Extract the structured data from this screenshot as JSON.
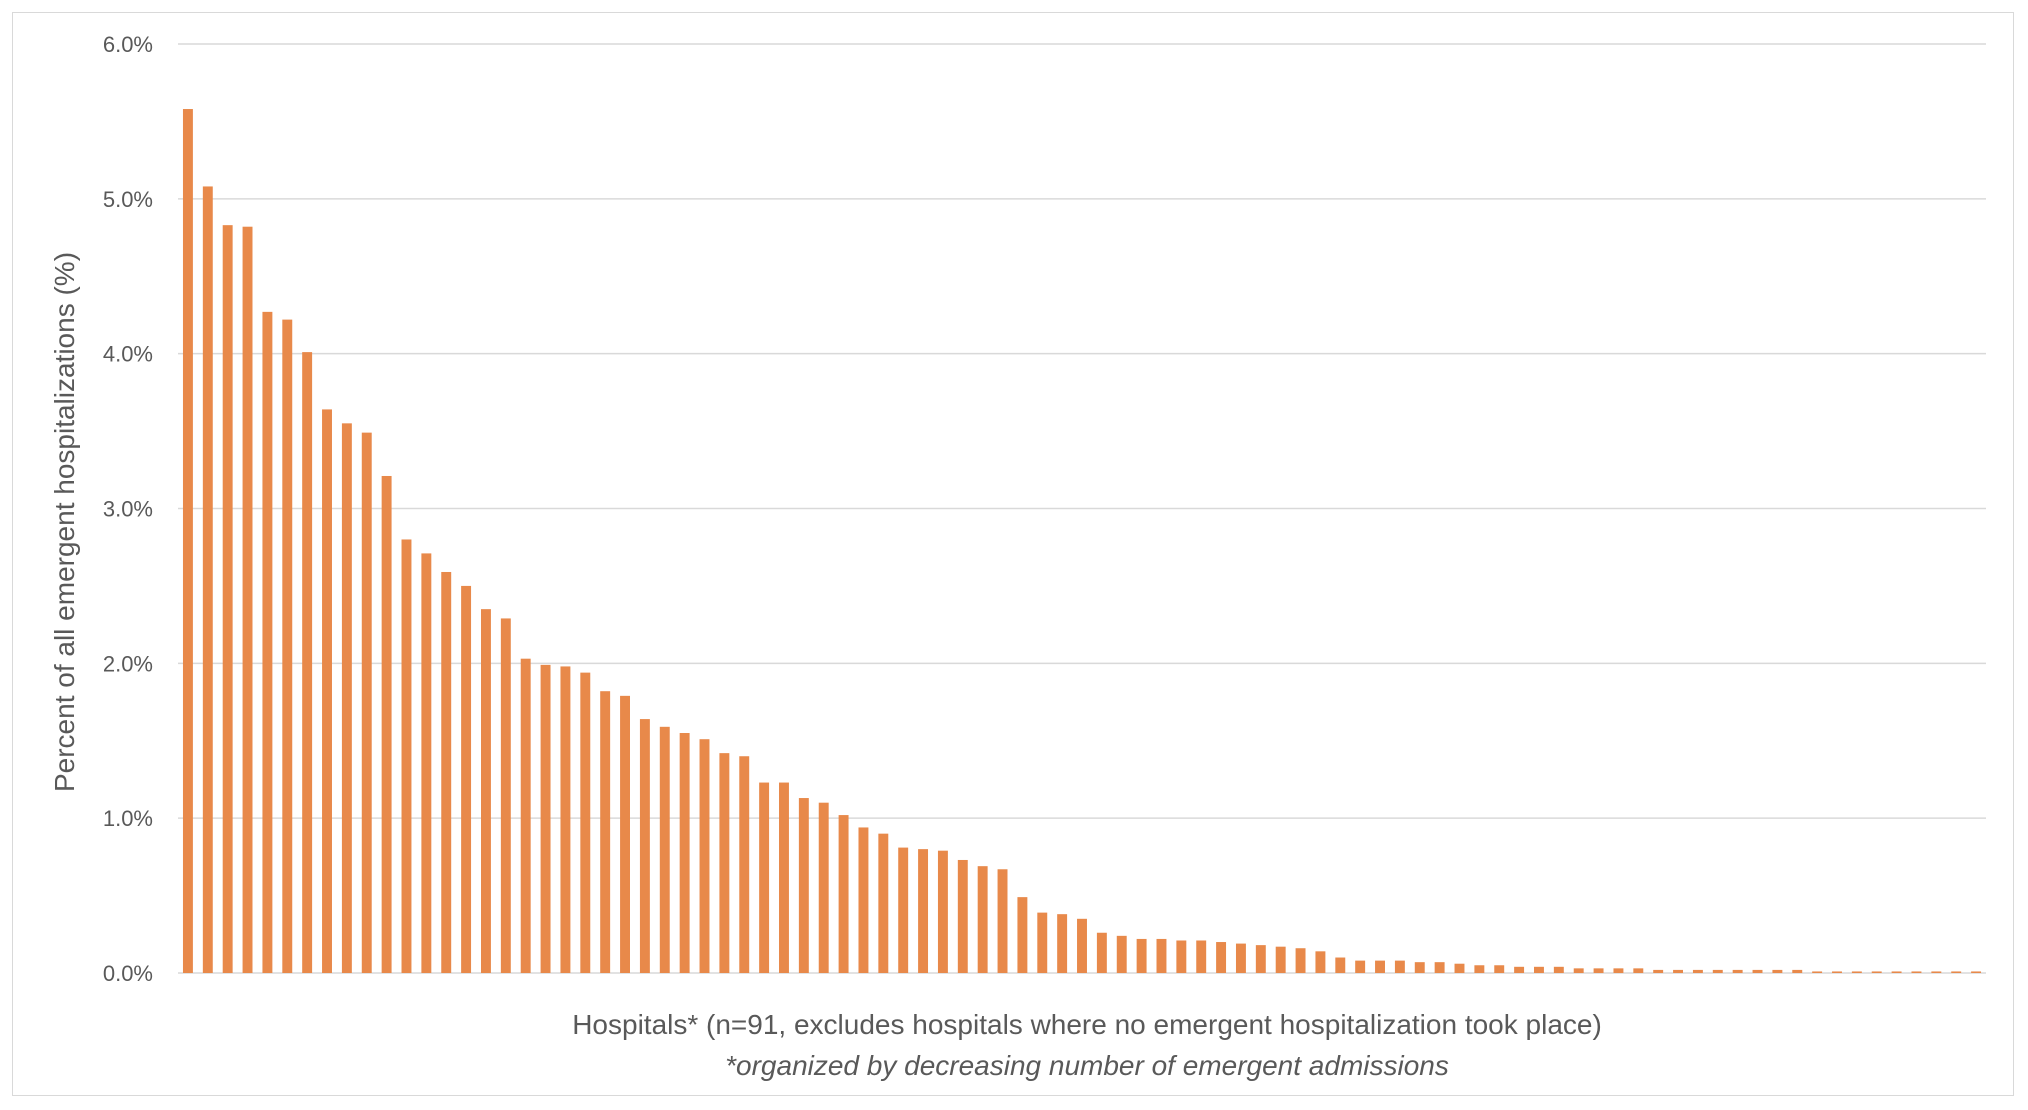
{
  "chart_data": {
    "type": "bar",
    "xlabel": "Hospitals* (n=91, excludes hospitals where no emergent hospitalization took place)",
    "x_note": "*organized by decreasing number of emergent admissions",
    "ylabel": "Percent of all emergent hospitalizations (%)",
    "ylim": [
      0,
      6.0
    ],
    "yticks": [
      "0.0%",
      "1.0%",
      "2.0%",
      "3.0%",
      "4.0%",
      "5.0%",
      "6.0%"
    ],
    "grid": true,
    "legend": "none",
    "bar_color": "#E8894A",
    "series": [
      {
        "values": [
          5.58,
          5.08,
          4.83,
          4.82,
          4.27,
          4.22,
          4.01,
          3.64,
          3.55,
          3.49,
          3.21,
          2.8,
          2.71,
          2.59,
          2.5,
          2.35,
          2.29,
          2.03,
          1.99,
          1.98,
          1.94,
          1.82,
          1.79,
          1.64,
          1.59,
          1.55,
          1.51,
          1.42,
          1.4,
          1.23,
          1.23,
          1.13,
          1.1,
          1.02,
          0.94,
          0.9,
          0.81,
          0.8,
          0.79,
          0.73,
          0.69,
          0.67,
          0.49,
          0.39,
          0.38,
          0.35,
          0.26,
          0.24,
          0.22,
          0.22,
          0.21,
          0.21,
          0.2,
          0.19,
          0.18,
          0.17,
          0.16,
          0.14,
          0.1,
          0.08,
          0.08,
          0.08,
          0.07,
          0.07,
          0.06,
          0.05,
          0.05,
          0.04,
          0.04,
          0.04,
          0.03,
          0.03,
          0.03,
          0.03,
          0.02,
          0.02,
          0.02,
          0.02,
          0.02,
          0.02,
          0.02,
          0.02,
          0.01,
          0.01,
          0.01,
          0.01,
          0.01,
          0.01,
          0.01,
          0.01,
          0.01
        ]
      }
    ]
  }
}
